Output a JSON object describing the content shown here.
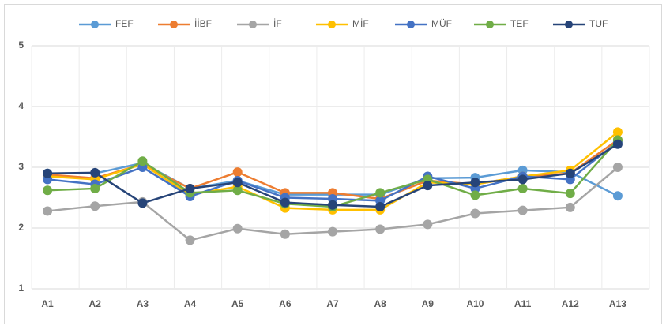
{
  "chart_data": {
    "type": "line",
    "categories": [
      "A1",
      "A2",
      "A3",
      "A4",
      "A5",
      "A6",
      "A7",
      "A8",
      "A9",
      "A10",
      "A11",
      "A12",
      "A13"
    ],
    "series": [
      {
        "name": "FEF",
        "color": "#5b9bd5",
        "values": [
          2.9,
          2.9,
          3.07,
          2.65,
          2.78,
          2.55,
          2.55,
          2.55,
          2.82,
          2.83,
          2.95,
          2.92,
          2.53
        ]
      },
      {
        "name": "İİBF",
        "color": "#ed7d31",
        "values": [
          2.88,
          2.82,
          3.05,
          2.65,
          2.92,
          2.58,
          2.58,
          2.48,
          2.78,
          2.72,
          2.85,
          2.9,
          3.45
        ]
      },
      {
        "name": "İF",
        "color": "#a5a5a5",
        "values": [
          2.28,
          2.36,
          2.43,
          1.8,
          1.99,
          1.9,
          1.94,
          1.98,
          2.06,
          2.24,
          2.29,
          2.34,
          3.0
        ]
      },
      {
        "name": "MİF",
        "color": "#ffc000",
        "values": [
          2.85,
          2.8,
          3.05,
          2.55,
          2.68,
          2.33,
          2.3,
          2.3,
          2.75,
          2.72,
          2.85,
          2.95,
          3.58
        ]
      },
      {
        "name": "MÜF",
        "color": "#4472c4",
        "values": [
          2.8,
          2.72,
          3.0,
          2.52,
          2.78,
          2.5,
          2.48,
          2.45,
          2.85,
          2.65,
          2.85,
          2.8,
          3.42
        ]
      },
      {
        "name": "TEF",
        "color": "#70ad47",
        "values": [
          2.62,
          2.65,
          3.1,
          2.58,
          2.62,
          2.4,
          2.35,
          2.58,
          2.8,
          2.54,
          2.65,
          2.57,
          3.45
        ]
      },
      {
        "name": "TUF",
        "color": "#264478",
        "values": [
          2.9,
          2.91,
          2.41,
          2.65,
          2.75,
          2.42,
          2.38,
          2.35,
          2.7,
          2.75,
          2.8,
          2.9,
          3.38
        ]
      }
    ],
    "ylim": [
      1,
      5
    ],
    "yticks": [
      1,
      2,
      3,
      4,
      5
    ],
    "grid": true,
    "legend": "top"
  }
}
